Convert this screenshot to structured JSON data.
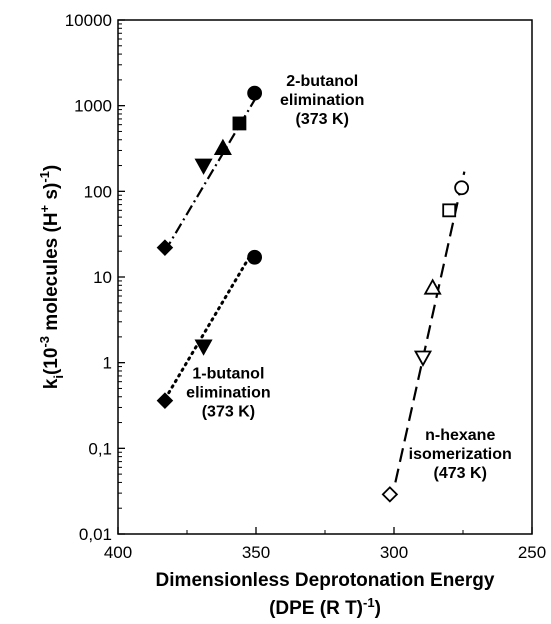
{
  "chart_data": {
    "type": "scatter",
    "x_scale": "linear",
    "y_scale": "log",
    "x_reversed": true,
    "xlim": [
      400,
      250
    ],
    "ylim": [
      0.01,
      10000
    ],
    "x_ticks": [
      400,
      350,
      300,
      250
    ],
    "y_ticks": [
      {
        "value": 0.01,
        "label": "0,01"
      },
      {
        "value": 0.1,
        "label": "0,1"
      },
      {
        "value": 1,
        "label": "1"
      },
      {
        "value": 10,
        "label": "10"
      },
      {
        "value": 100,
        "label": "100"
      },
      {
        "value": 1000,
        "label": "1000"
      },
      {
        "value": 10000,
        "label": "10000"
      }
    ],
    "xlabel_line1": "Dimensionless Deprotonation Energy",
    "xlabel_line2": "(DPE (R T)",
    "xlabel_sup": "-1",
    "xlabel_end": ")",
    "ylabel_parts": {
      "k": "k",
      "i": "i",
      "open": "(10",
      "exp": "-3",
      "mid": " molecules (H",
      "plus": "+",
      "s": " s)",
      "close_exp": "-1",
      "close": ")"
    },
    "grid": false,
    "series": [
      {
        "name": "2-butanol elimination (373 K)",
        "line_style": "dash-dot",
        "fit": {
          "x": [
            383,
            348.5
          ],
          "y": [
            20,
            1500
          ]
        },
        "points": [
          {
            "x": 383,
            "y": 22,
            "marker": "diamond",
            "filled": true
          },
          {
            "x": 369,
            "y": 200,
            "marker": "triangle-down",
            "filled": true
          },
          {
            "x": 362,
            "y": 320,
            "marker": "triangle-up",
            "filled": true
          },
          {
            "x": 356,
            "y": 620,
            "marker": "square",
            "filled": true
          },
          {
            "x": 350.5,
            "y": 1400,
            "marker": "circle",
            "filled": true
          }
        ]
      },
      {
        "name": "1-butanol elimination (373 K)",
        "line_style": "dotted",
        "fit": {
          "x": [
            384,
            352
          ],
          "y": [
            0.33,
            18
          ]
        },
        "points": [
          {
            "x": 383,
            "y": 0.36,
            "marker": "diamond",
            "filled": true
          },
          {
            "x": 369,
            "y": 1.55,
            "marker": "triangle-down",
            "filled": true
          },
          {
            "x": 350.5,
            "y": 17,
            "marker": "circle",
            "filled": true
          }
        ]
      },
      {
        "name": "n-hexane isomerization (473 K)",
        "line_style": "dashed",
        "fit": {
          "x": [
            299.5,
            274.5
          ],
          "y": [
            0.04,
            170
          ]
        },
        "points": [
          {
            "x": 301.5,
            "y": 0.029,
            "marker": "diamond",
            "filled": false
          },
          {
            "x": 289.5,
            "y": 1.15,
            "marker": "triangle-down",
            "filled": false
          },
          {
            "x": 286,
            "y": 7.5,
            "marker": "triangle-up",
            "filled": false
          },
          {
            "x": 280,
            "y": 60,
            "marker": "square",
            "filled": false
          },
          {
            "x": 275.5,
            "y": 110,
            "marker": "circle",
            "filled": false
          }
        ]
      }
    ],
    "annotations": [
      {
        "lines": [
          "2-butanol",
          "elimination",
          "(373 K)"
        ],
        "anchor_x": 326,
        "anchor_y": 1700
      },
      {
        "lines": [
          "1-butanol",
          "elimination",
          "(373 K)"
        ],
        "anchor_x": 360,
        "anchor_y": 0.65
      },
      {
        "lines": [
          "n-hexane",
          "isomerization",
          "(473 K)"
        ],
        "anchor_x": 276,
        "anchor_y": 0.125
      }
    ]
  }
}
